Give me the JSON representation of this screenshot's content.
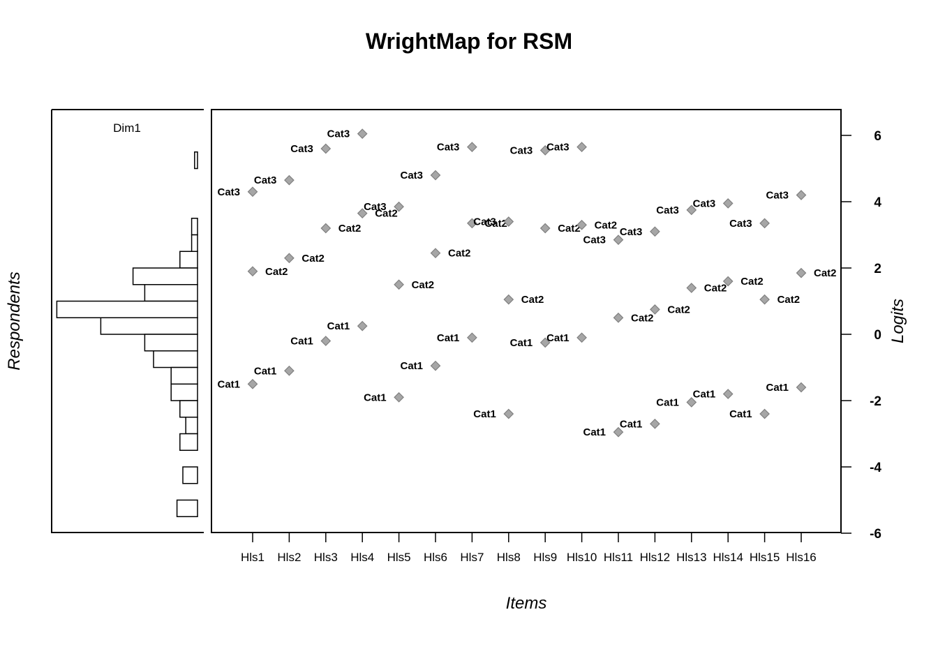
{
  "chart_data": {
    "type": "scatter",
    "title": "WrightMap for RSM",
    "xlabel": "Items",
    "ylabel": "Logits",
    "left_ylabel": "Respondents",
    "ylim": [
      -6,
      6.7
    ],
    "yticks": [
      "-6",
      "-4",
      "-2",
      "0",
      "2",
      "4",
      "6"
    ],
    "person_panel": {
      "label": "Dim1",
      "histogram_bins": [
        {
          "lo": 5.0,
          "hi": 5.5,
          "count": 1
        },
        {
          "lo": 4.0,
          "hi": 4.5,
          "count": 0
        },
        {
          "lo": 3.0,
          "hi": 3.5,
          "count": 2
        },
        {
          "lo": 2.5,
          "hi": 3.0,
          "count": 2
        },
        {
          "lo": 2.0,
          "hi": 2.5,
          "count": 6
        },
        {
          "lo": 1.5,
          "hi": 2.0,
          "count": 22
        },
        {
          "lo": 1.0,
          "hi": 1.5,
          "count": 18
        },
        {
          "lo": 0.5,
          "hi": 1.0,
          "count": 48
        },
        {
          "lo": 0.0,
          "hi": 0.5,
          "count": 33
        },
        {
          "lo": -0.5,
          "hi": 0.0,
          "count": 18
        },
        {
          "lo": -1.0,
          "hi": -0.5,
          "count": 15
        },
        {
          "lo": -1.5,
          "hi": -1.0,
          "count": 9
        },
        {
          "lo": -2.0,
          "hi": -1.5,
          "count": 9
        },
        {
          "lo": -2.5,
          "hi": -2.0,
          "count": 6
        },
        {
          "lo": -3.0,
          "hi": -2.5,
          "count": 4
        },
        {
          "lo": -3.5,
          "hi": -3.0,
          "count": 6
        },
        {
          "lo": -4.0,
          "hi": -3.5,
          "count": 0
        },
        {
          "lo": -4.5,
          "hi": -4.0,
          "count": 5
        },
        {
          "lo": -5.0,
          "hi": -4.5,
          "count": 0
        },
        {
          "lo": -5.5,
          "hi": -5.0,
          "count": 7
        }
      ]
    },
    "categories": [
      "Hls1",
      "Hls2",
      "Hls3",
      "Hls4",
      "Hls5",
      "Hls6",
      "Hls7",
      "Hls8",
      "Hls9",
      "Hls10",
      "Hls11",
      "Hls12",
      "Hls13",
      "Hls14",
      "Hls15",
      "Hls16"
    ],
    "series": [
      {
        "name": "Cat1",
        "values": [
          -1.5,
          -1.1,
          -0.2,
          0.25,
          -1.9,
          -0.95,
          -0.1,
          -2.4,
          -0.25,
          -0.1,
          -2.95,
          -2.7,
          -2.05,
          -1.8,
          -2.4,
          -1.6
        ]
      },
      {
        "name": "Cat2",
        "values": [
          1.9,
          2.3,
          3.2,
          3.65,
          1.5,
          2.45,
          3.35,
          1.05,
          3.2,
          3.3,
          0.5,
          0.75,
          1.4,
          1.6,
          1.05,
          1.85
        ]
      },
      {
        "name": "Cat3",
        "values": [
          4.3,
          4.65,
          5.6,
          6.05,
          3.85,
          4.8,
          5.65,
          3.4,
          5.55,
          5.65,
          2.85,
          3.1,
          3.75,
          3.95,
          3.35,
          4.2
        ]
      }
    ],
    "label_side": {
      "Cat1": [
        "L",
        "L",
        "L",
        "L",
        "L",
        "L",
        "L",
        "L",
        "L",
        "L",
        "L",
        "L",
        "L",
        "L",
        "L",
        "L"
      ],
      "Cat2": [
        "R",
        "R",
        "R",
        "R",
        "R",
        "R",
        "R",
        "R",
        "R",
        "R",
        "R",
        "R",
        "R",
        "R",
        "R",
        "R"
      ],
      "Cat3": [
        "L",
        "L",
        "L",
        "L",
        "L",
        "L",
        "L",
        "L",
        "L",
        "L",
        "L",
        "L",
        "L",
        "L",
        "L",
        "L"
      ]
    },
    "point_color": "#a6a6a6",
    "point_stroke": "#7f7f7f"
  }
}
